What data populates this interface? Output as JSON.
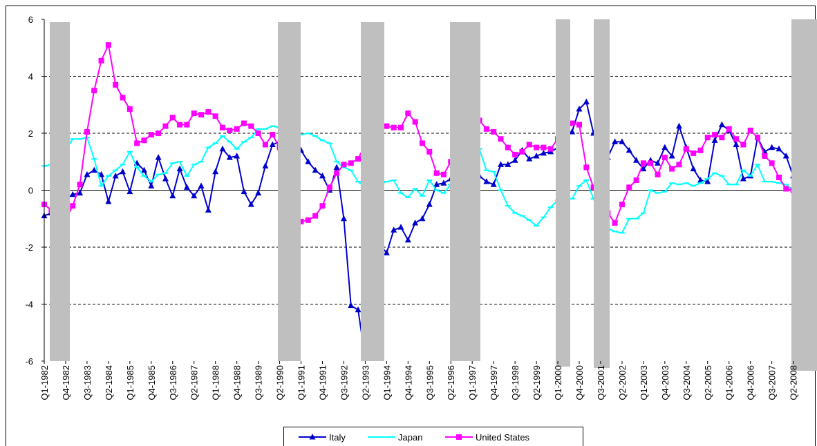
{
  "chart_data": {
    "type": "line",
    "categories": [
      "Q1-1982",
      null,
      null,
      "Q4-1982",
      null,
      null,
      "Q3-1983",
      null,
      null,
      "Q2-1984",
      null,
      null,
      "Q1-1985",
      null,
      null,
      "Q4-1985",
      null,
      null,
      "Q3-1986",
      null,
      null,
      "Q2-1987",
      null,
      null,
      "Q1-1988",
      null,
      null,
      "Q4-1988",
      null,
      null,
      "Q3-1989",
      null,
      null,
      "Q2-1990",
      null,
      null,
      "Q1-1991",
      null,
      null,
      "Q4-1991",
      null,
      null,
      "Q3-1992",
      null,
      null,
      "Q2-1993",
      null,
      null,
      "Q1-1994",
      null,
      null,
      "Q4-1994",
      null,
      null,
      "Q3-1995",
      null,
      null,
      "Q2-1996",
      null,
      null,
      "Q1-1997",
      null,
      null,
      "Q4-1997",
      null,
      null,
      "Q3-1998",
      null,
      null,
      "Q2-1999",
      null,
      null,
      "Q1-2000",
      null,
      null,
      "Q4-2000",
      null,
      null,
      "Q3-2001",
      null,
      null,
      "Q2-2002",
      null,
      null,
      "Q1-2003",
      null,
      null,
      "Q4-2003",
      null,
      null,
      "Q3-2004",
      null,
      null,
      "Q2-2005",
      null,
      null,
      "Q1-2006",
      null,
      null,
      "Q4-2006",
      null,
      null,
      "Q3-2007",
      null,
      null,
      "Q2-2008",
      null,
      null
    ],
    "series": [
      {
        "name": "Italy",
        "color": "#0000cc",
        "marker": "triangle",
        "values": [
          -0.9,
          -0.8,
          -0.6,
          -0.3,
          -0.15,
          -0.1,
          0.55,
          0.7,
          0.55,
          -0.4,
          0.5,
          0.65,
          -0.05,
          0.95,
          0.7,
          0.15,
          1.15,
          0.4,
          -0.2,
          0.75,
          0.1,
          -0.2,
          0.15,
          -0.7,
          0.65,
          1.45,
          1.15,
          1.2,
          -0.05,
          -0.5,
          -0.1,
          0.85,
          1.6,
          1.7,
          1.6,
          1.5,
          1.4,
          1.0,
          0.7,
          0.5,
          0.0,
          0.8,
          -1.0,
          -4.05,
          -4.2,
          -5.9,
          -4.0,
          -1.9,
          -2.2,
          -1.4,
          -1.3,
          -1.75,
          -1.15,
          -1.0,
          -0.5,
          0.2,
          0.25,
          0.4,
          0.6,
          0.7,
          0.6,
          0.5,
          0.3,
          0.2,
          0.9,
          0.9,
          1.05,
          1.4,
          1.1,
          1.2,
          1.3,
          1.35,
          1.5,
          1.8,
          2.05,
          2.85,
          3.1,
          2.0,
          1.5,
          1.15,
          1.7,
          1.7,
          1.4,
          1.05,
          0.75,
          1.05,
          0.95,
          1.5,
          1.2,
          2.25,
          1.5,
          0.75,
          0.35,
          0.3,
          1.75,
          2.3,
          2.1,
          1.6,
          0.4,
          0.5,
          1.85,
          1.35,
          1.5,
          1.45,
          1.2,
          0.5,
          0.0,
          -0.5
        ]
      },
      {
        "name": "Japan",
        "color": "#00ffff",
        "marker": "dash",
        "values": [
          0.85,
          0.9,
          1.2,
          1.4,
          1.8,
          1.8,
          1.85,
          1.1,
          0.15,
          0.5,
          0.7,
          0.9,
          1.35,
          0.8,
          0.5,
          0.3,
          0.55,
          0.6,
          0.95,
          1.0,
          0.5,
          0.9,
          1.0,
          1.5,
          1.65,
          1.9,
          1.7,
          1.45,
          1.7,
          1.85,
          2.15,
          2.15,
          2.25,
          2.2,
          2.1,
          2.0,
          1.95,
          2.0,
          1.9,
          1.75,
          1.65,
          1.0,
          0.8,
          0.7,
          0.3,
          0.1,
          0.2,
          0.2,
          0.3,
          0.35,
          -0.1,
          -0.25,
          0.05,
          -0.2,
          0.35,
          0.0,
          -0.1,
          0.2,
          0.8,
          1.2,
          1.5,
          1.45,
          0.7,
          0.65,
          0.0,
          -0.55,
          -0.8,
          -0.9,
          -1.05,
          -1.25,
          -0.95,
          -0.6,
          -0.35,
          -0.3,
          -0.3,
          0.15,
          0.35,
          -0.3,
          -0.9,
          -1.35,
          -1.45,
          -1.5,
          -1.0,
          -1.0,
          -0.8,
          0.0,
          -0.1,
          -0.05,
          0.25,
          0.2,
          0.25,
          0.15,
          0.25,
          0.4,
          0.6,
          0.5,
          0.2,
          0.2,
          0.7,
          0.5,
          0.9,
          0.3,
          0.3,
          0.25,
          0.2,
          0.0,
          -0.2,
          -0.35
        ]
      },
      {
        "name": "United States",
        "color": "#ff00ff",
        "marker": "square",
        "values": [
          -0.5,
          -0.7,
          -0.9,
          -1.0,
          -0.55,
          0.2,
          2.05,
          3.5,
          4.55,
          5.1,
          3.7,
          3.25,
          2.85,
          1.65,
          1.75,
          1.95,
          2.0,
          2.25,
          2.55,
          2.3,
          2.3,
          2.7,
          2.65,
          2.75,
          2.6,
          2.2,
          2.1,
          2.15,
          2.35,
          2.25,
          2.0,
          1.6,
          1.95,
          1.5,
          0.5,
          -0.5,
          -1.1,
          -1.05,
          -0.9,
          -0.55,
          0.1,
          0.6,
          0.9,
          0.95,
          1.1,
          1.6,
          2.0,
          2.2,
          2.25,
          2.2,
          2.2,
          2.7,
          2.4,
          1.65,
          1.35,
          0.6,
          0.55,
          1.0,
          1.8,
          2.3,
          2.4,
          2.45,
          2.15,
          2.05,
          1.8,
          1.5,
          1.25,
          1.35,
          1.6,
          1.5,
          1.5,
          1.45,
          1.8,
          2.2,
          2.35,
          2.3,
          0.8,
          0.1,
          -0.5,
          -0.8,
          -1.15,
          -0.5,
          0.1,
          0.35,
          0.95,
          0.95,
          0.55,
          1.15,
          0.75,
          0.9,
          1.45,
          1.3,
          1.4,
          1.85,
          1.95,
          1.85,
          2.15,
          1.8,
          1.6,
          2.1,
          1.85,
          1.2,
          0.95,
          0.45,
          0.05,
          0.0,
          -0.1,
          -0.3
        ]
      }
    ],
    "ylim": [
      -6,
      6
    ],
    "yticks": [
      -6,
      -4,
      -2,
      0,
      2,
      4,
      6
    ],
    "grid": true,
    "legend": "bottom"
  }
}
